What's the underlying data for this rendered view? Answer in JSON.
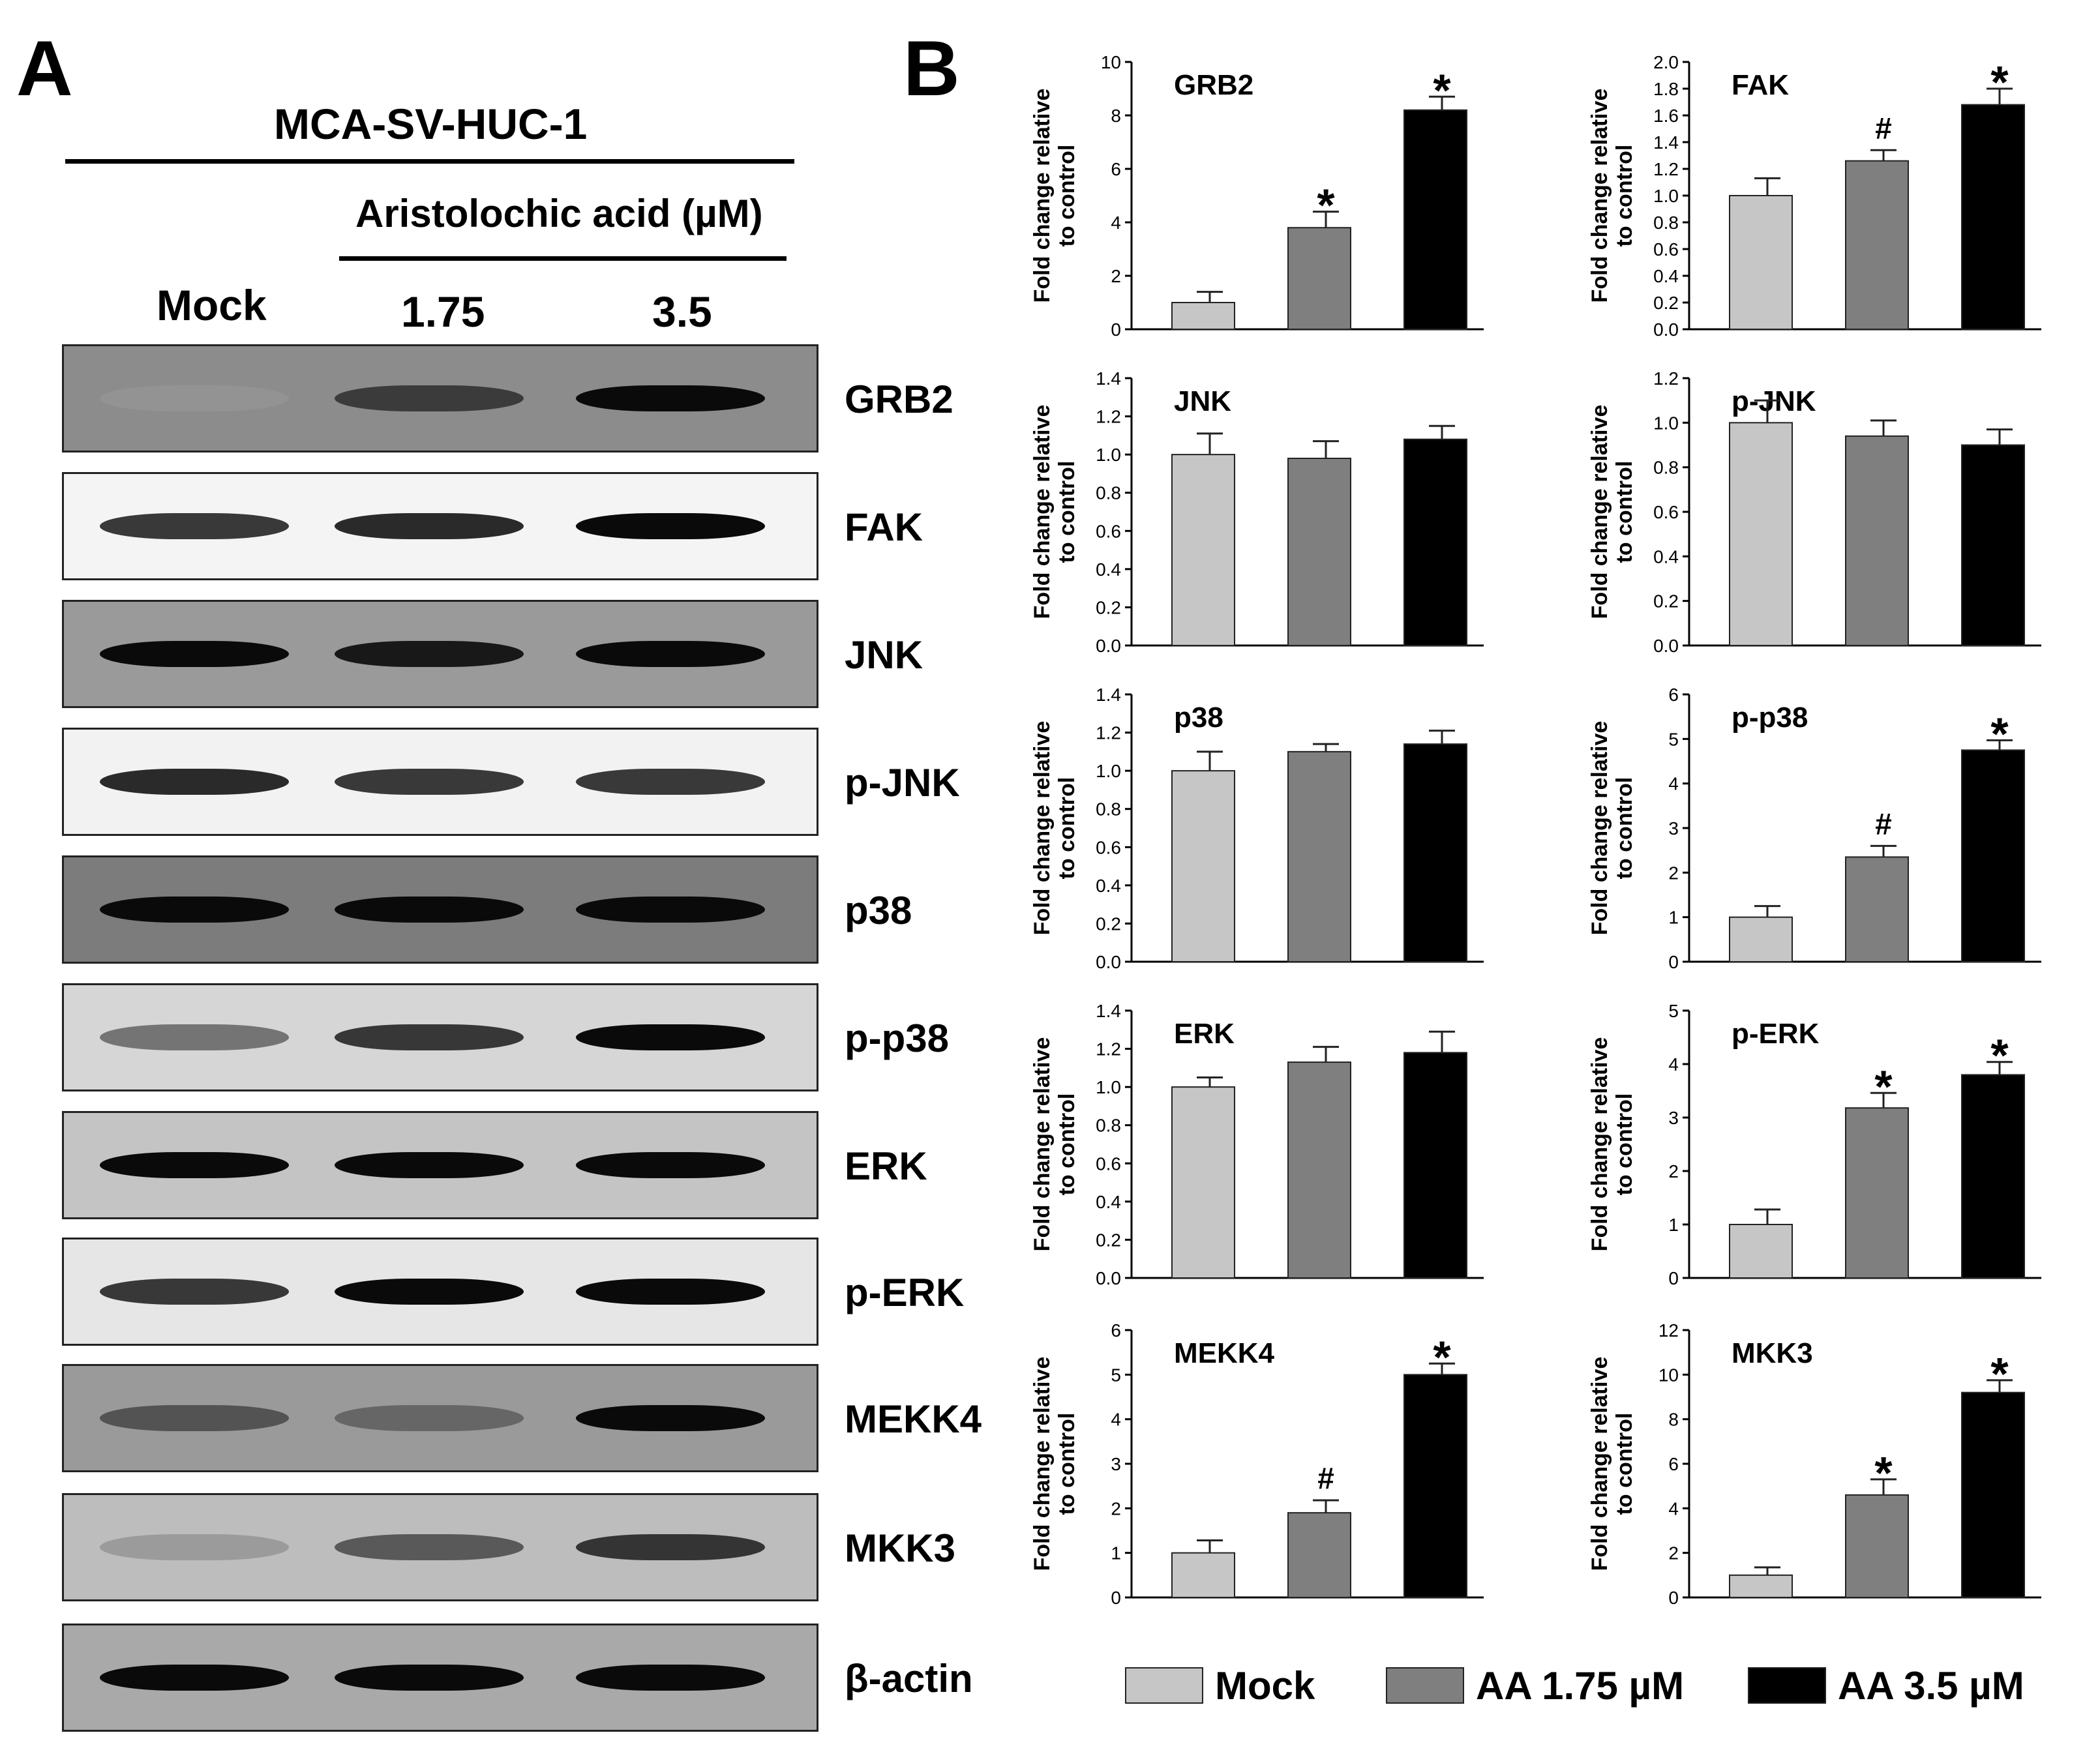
{
  "panel_a": {
    "letter": "A",
    "cell_line": "MCA-SV-HUC-1",
    "treatment": "Aristolochic acid  (µM)",
    "lanes": [
      "Mock",
      "1.75",
      "3.5"
    ],
    "blots": [
      {
        "label": "GRB2",
        "bg": "#8c8c8c",
        "intensity": [
          0.25,
          0.8,
          1.0
        ]
      },
      {
        "label": "FAK",
        "bg": "#f4f4f4",
        "intensity": [
          0.85,
          0.9,
          1.0
        ]
      },
      {
        "label": "JNK",
        "bg": "#9a9a9a",
        "intensity": [
          1.0,
          0.95,
          1.0
        ]
      },
      {
        "label": "p-JNK",
        "bg": "#f2f2f2",
        "intensity": [
          0.9,
          0.85,
          0.85
        ]
      },
      {
        "label": "p38",
        "bg": "#7c7c7c",
        "intensity": [
          1.0,
          1.0,
          1.0
        ]
      },
      {
        "label": "p-p38",
        "bg": "#d6d6d6",
        "intensity": [
          0.6,
          0.85,
          1.0
        ]
      },
      {
        "label": "ERK",
        "bg": "#c4c4c4",
        "intensity": [
          1.0,
          1.0,
          1.0
        ]
      },
      {
        "label": "p-ERK",
        "bg": "#e6e6e6",
        "intensity": [
          0.85,
          1.0,
          1.0
        ]
      },
      {
        "label": "MEKK4",
        "bg": "#9a9a9a",
        "intensity": [
          0.7,
          0.6,
          1.0
        ]
      },
      {
        "label": "MKK3",
        "bg": "#bdbdbd",
        "intensity": [
          0.35,
          0.7,
          0.85
        ]
      },
      {
        "label": "β-actin",
        "bg": "#a9a9a9",
        "intensity": [
          1.0,
          1.0,
          1.0
        ]
      }
    ]
  },
  "panel_b": {
    "letter": "B",
    "ylabel_line1": "Fold change relative",
    "ylabel_line2": "to control"
  },
  "colors": {
    "mock": "#c6c6c6",
    "aa175": "#7f7f7f",
    "aa35": "#000000"
  },
  "chart_data": [
    {
      "type": "bar",
      "title": "GRB2",
      "categories": [
        "Mock",
        "AA 1.75 µM",
        "AA 3.5 µM"
      ],
      "values": [
        1.0,
        3.8,
        8.2
      ],
      "errors": [
        0.4,
        0.6,
        0.5
      ],
      "marks": [
        "",
        "*",
        "*"
      ],
      "ylim": [
        0,
        10
      ],
      "yticks": [
        "0",
        "2",
        "4",
        "6",
        "8",
        "10"
      ]
    },
    {
      "type": "bar",
      "title": "FAK",
      "categories": [
        "Mock",
        "AA 1.75 µM",
        "AA 3.5 µM"
      ],
      "values": [
        1.0,
        1.26,
        1.68
      ],
      "errors": [
        0.13,
        0.08,
        0.12
      ],
      "marks": [
        "",
        "#",
        "*"
      ],
      "ylim": [
        0,
        2.0
      ],
      "yticks": [
        "0.0",
        "0.2",
        "0.4",
        "0.6",
        "0.8",
        "1.0",
        "1.2",
        "1.4",
        "1.6",
        "1.8",
        "2.0"
      ]
    },
    {
      "type": "bar",
      "title": "JNK",
      "categories": [
        "Mock",
        "AA 1.75 µM",
        "AA 3.5 µM"
      ],
      "values": [
        1.0,
        0.98,
        1.08
      ],
      "errors": [
        0.11,
        0.09,
        0.07
      ],
      "marks": [
        "",
        "",
        ""
      ],
      "ylim": [
        0,
        1.4
      ],
      "yticks": [
        "0.0",
        "0.2",
        "0.4",
        "0.6",
        "0.8",
        "1.0",
        "1.2",
        "1.4"
      ]
    },
    {
      "type": "bar",
      "title": "p-JNK",
      "categories": [
        "Mock",
        "AA 1.75 µM",
        "AA 3.5 µM"
      ],
      "values": [
        1.0,
        0.94,
        0.9
      ],
      "errors": [
        0.1,
        0.07,
        0.07
      ],
      "marks": [
        "",
        "",
        ""
      ],
      "ylim": [
        0,
        1.2
      ],
      "yticks": [
        "0.0",
        "0.2",
        "0.4",
        "0.6",
        "0.8",
        "1.0",
        "1.2"
      ]
    },
    {
      "type": "bar",
      "title": "p38",
      "categories": [
        "Mock",
        "AA 1.75 µM",
        "AA 3.5 µM"
      ],
      "values": [
        1.0,
        1.1,
        1.14
      ],
      "errors": [
        0.1,
        0.04,
        0.07
      ],
      "marks": [
        "",
        "",
        ""
      ],
      "ylim": [
        0,
        1.4
      ],
      "yticks": [
        "0.0",
        "0.2",
        "0.4",
        "0.6",
        "0.8",
        "1.0",
        "1.2",
        "1.4"
      ]
    },
    {
      "type": "bar",
      "title": "p-p38",
      "categories": [
        "Mock",
        "AA 1.75 µM",
        "AA 3.5 µM"
      ],
      "values": [
        1.0,
        2.35,
        4.75
      ],
      "errors": [
        0.25,
        0.25,
        0.22
      ],
      "marks": [
        "",
        "#",
        "*"
      ],
      "ylim": [
        0,
        6
      ],
      "yticks": [
        "0",
        "1",
        "2",
        "3",
        "4",
        "5",
        "6"
      ]
    },
    {
      "type": "bar",
      "title": "ERK",
      "categories": [
        "Mock",
        "AA 1.75 µM",
        "AA 3.5 µM"
      ],
      "values": [
        1.0,
        1.13,
        1.18
      ],
      "errors": [
        0.05,
        0.08,
        0.11
      ],
      "marks": [
        "",
        "",
        ""
      ],
      "ylim": [
        0,
        1.4
      ],
      "yticks": [
        "0.0",
        "0.2",
        "0.4",
        "0.6",
        "0.8",
        "1.0",
        "1.2",
        "1.4"
      ]
    },
    {
      "type": "bar",
      "title": "p-ERK",
      "categories": [
        "Mock",
        "AA 1.75 µM",
        "AA 3.5 µM"
      ],
      "values": [
        1.0,
        3.18,
        3.8
      ],
      "errors": [
        0.28,
        0.28,
        0.24
      ],
      "marks": [
        "",
        "*",
        "*"
      ],
      "ylim": [
        0,
        5
      ],
      "yticks": [
        "0",
        "1",
        "2",
        "3",
        "4",
        "5"
      ]
    },
    {
      "type": "bar",
      "title": "MEKK4",
      "categories": [
        "Mock",
        "AA 1.75 µM",
        "AA 3.5 µM"
      ],
      "values": [
        1.0,
        1.9,
        5.0
      ],
      "errors": [
        0.28,
        0.28,
        0.25
      ],
      "marks": [
        "",
        "#",
        "*"
      ],
      "ylim": [
        0,
        6
      ],
      "yticks": [
        "0",
        "1",
        "2",
        "3",
        "4",
        "5",
        "6"
      ]
    },
    {
      "type": "bar",
      "title": "MKK3",
      "categories": [
        "Mock",
        "AA 1.75 µM",
        "AA 3.5 µM"
      ],
      "values": [
        1.0,
        4.6,
        9.2
      ],
      "errors": [
        0.35,
        0.7,
        0.55
      ],
      "marks": [
        "",
        "*",
        "*"
      ],
      "ylim": [
        0,
        12
      ],
      "yticks": [
        "0",
        "2",
        "4",
        "6",
        "8",
        "10",
        "12"
      ]
    }
  ],
  "legend": [
    {
      "label": "Mock",
      "color": "#c6c6c6"
    },
    {
      "label": "AA 1.75 µM",
      "color": "#7f7f7f"
    },
    {
      "label": "AA 3.5 µM",
      "color": "#000000"
    }
  ]
}
